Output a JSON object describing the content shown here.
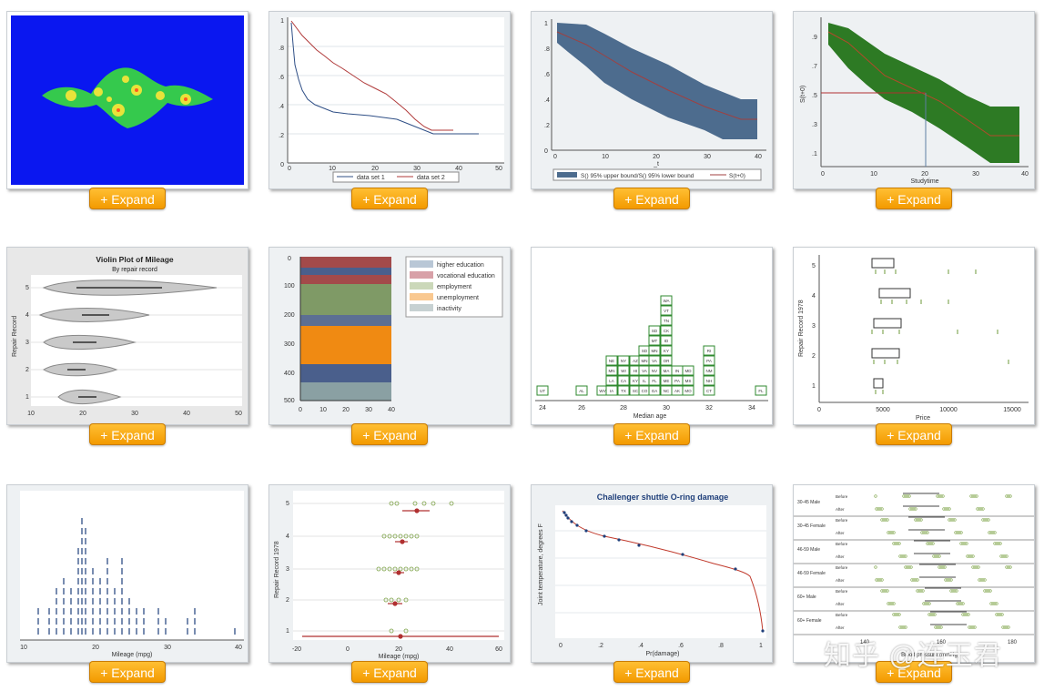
{
  "expand_label": "+ Expand",
  "thumbnails": {
    "t2": {
      "legend": [
        "data set 1",
        "data set 2"
      ],
      "xticks": [
        "0",
        "10",
        "20",
        "30",
        "40",
        "50"
      ],
      "yticks": [
        "0",
        ".2",
        ".4",
        ".6",
        ".8",
        "1"
      ]
    },
    "t3": {
      "legend": [
        "S() 95% upper bound/S() 95% lower bound",
        "S(t+0)"
      ],
      "xlabel": "_t",
      "xticks": [
        "0",
        "10",
        "20",
        "30",
        "40"
      ],
      "yticks": [
        "0",
        ".2",
        ".4",
        ".6",
        ".8",
        "1"
      ]
    },
    "t4": {
      "xlabel": "Studytime",
      "ylabel": "S(t+0)",
      "xticks": [
        "0",
        "10",
        "20",
        "30",
        "40"
      ],
      "yticks": [
        ".1",
        ".3",
        ".5",
        ".7",
        ".9"
      ]
    },
    "t5": {
      "title": "Violin Plot of Mileage",
      "subtitle": "By repair record",
      "ylabel": "Repair Record",
      "xticks": [
        "10",
        "20",
        "30",
        "40",
        "50"
      ],
      "yticks": [
        "1",
        "2",
        "3",
        "4",
        "5"
      ]
    },
    "t6": {
      "legend": [
        "higher education",
        "vocational education",
        "employment",
        "unemployment",
        "inactivity"
      ],
      "xticks": [
        "0",
        "10",
        "20",
        "30",
        "40"
      ],
      "yticks": [
        "0",
        "100",
        "200",
        "300",
        "400",
        "500"
      ]
    },
    "t7": {
      "xlabel": "Median age",
      "xticks": [
        "24",
        "26",
        "28",
        "30",
        "32",
        "34"
      ],
      "columns": [
        [
          "UT"
        ],
        [
          "AL"
        ],
        [
          "WV"
        ],
        [
          "IA",
          "LA",
          "MN",
          "NE"
        ],
        [
          "TX",
          "CA",
          "WI",
          "NY"
        ],
        [
          "SC",
          "KY",
          "HI",
          "AZ"
        ],
        [
          "CO",
          "IL",
          "VA",
          "MN",
          "SD"
        ],
        [
          "GA",
          "FL",
          "NV",
          "VA",
          "MN",
          "MT",
          "SD"
        ],
        [
          "NC",
          "ME",
          "MA",
          "OR",
          "KY",
          "ID",
          "CK",
          "TN",
          "VT",
          "WA"
        ],
        [
          "AK",
          "PA",
          "IN"
        ],
        [
          "MO",
          "MS",
          "MD"
        ],
        [
          "CT",
          "NH",
          "NM",
          "PA",
          "RI"
        ],
        [
          "FL"
        ]
      ]
    },
    "t8": {
      "xlabel": "Price",
      "ylabel": "Repair Record 1978",
      "xticks": [
        "0",
        "5000",
        "10000",
        "15000"
      ],
      "yticks": [
        "1",
        "2",
        "3",
        "4",
        "5"
      ]
    },
    "t9": {
      "xlabel": "Mileage (mpg)",
      "xticks": [
        "10",
        "20",
        "30",
        "40"
      ]
    },
    "t10": {
      "xlabel": "Mileage (mpg)",
      "ylabel": "Repair Record 1978",
      "xticks": [
        "-20",
        "0",
        "20",
        "40",
        "60"
      ],
      "yticks": [
        "1",
        "2",
        "3",
        "4",
        "5"
      ]
    },
    "t11": {
      "title": "Challenger shuttle O-ring damage",
      "xlabel": "Pr(damage)",
      "ylabel": "Joint temperature, degrees F",
      "xticks": [
        "0",
        ".2",
        ".4",
        ".6",
        ".8",
        "1"
      ]
    },
    "t12": {
      "groups": [
        "30-45 Male",
        "30-45 Female",
        "46-59 Male",
        "46-59 Female",
        "60+ Male",
        "60+ Female"
      ],
      "rows": [
        "Before",
        "After"
      ],
      "xlabel": "Blood pressure (mmHg)",
      "xticks": [
        "140",
        "160",
        "180"
      ]
    }
  },
  "watermark": "知乎 @连玉君",
  "colors": {
    "orange": "#f5a300",
    "julia_bg": "#0a17f0",
    "green_band": "#2d7a24",
    "slate_band": "#4d6c8e"
  }
}
